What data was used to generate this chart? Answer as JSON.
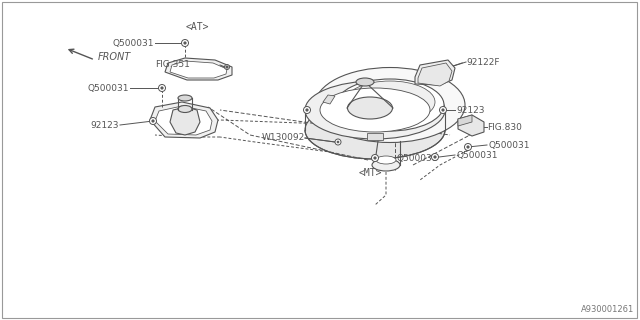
{
  "background_color": "#ffffff",
  "line_color": "#555555",
  "diagram_id": "A930001261",
  "labels": {
    "front": "FRONT",
    "92122F": "92122F",
    "W130092": "W130092",
    "FIG830": "FIG.830",
    "Q500031": "Q500031",
    "92123": "92123",
    "FIG351": "FIG.351",
    "AT": "<AT>",
    "MT": "<MT>"
  },
  "figsize": [
    6.4,
    3.2
  ],
  "dpi": 100
}
